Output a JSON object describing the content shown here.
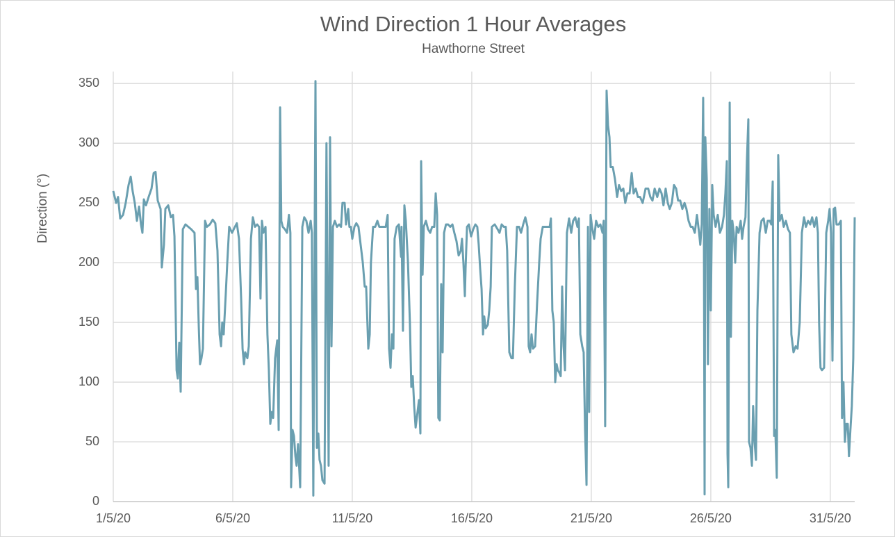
{
  "chart_data": {
    "type": "line",
    "title": "Wind Direction 1 Hour Averages",
    "subtitle": "Hawthorne Street",
    "y_label": "Direction (°)",
    "xlim": [
      1,
      32.02
    ],
    "ylim": [
      0,
      360
    ],
    "xticks": [
      {
        "value": 1,
        "label": "1/5/20"
      },
      {
        "value": 6,
        "label": "6/5/20"
      },
      {
        "value": 11,
        "label": "11/5/20"
      },
      {
        "value": 16,
        "label": "16/5/20"
      },
      {
        "value": 21,
        "label": "21/5/20"
      },
      {
        "value": 26,
        "label": "26/5/20"
      },
      {
        "value": 31,
        "label": "31/5/20"
      }
    ],
    "yticks": [
      0,
      50,
      100,
      150,
      200,
      250,
      300,
      350
    ],
    "grid": true,
    "x": [
      1.0,
      1.12,
      1.2,
      1.29,
      1.41,
      1.52,
      1.64,
      1.73,
      1.81,
      1.9,
      1.99,
      2.08,
      2.16,
      2.22,
      2.28,
      2.37,
      2.48,
      2.6,
      2.69,
      2.77,
      2.86,
      2.98,
      3.03,
      3.12,
      3.18,
      3.3,
      3.41,
      3.5,
      3.56,
      3.65,
      3.7,
      3.76,
      3.82,
      3.91,
      4.02,
      4.14,
      4.26,
      4.4,
      4.46,
      4.52,
      4.58,
      4.63,
      4.69,
      4.75,
      4.84,
      4.92,
      5.04,
      5.16,
      5.27,
      5.36,
      5.45,
      5.51,
      5.56,
      5.62,
      5.71,
      5.77,
      5.85,
      5.97,
      6.09,
      6.17,
      6.26,
      6.35,
      6.41,
      6.47,
      6.52,
      6.61,
      6.67,
      6.76,
      6.84,
      6.93,
      7.02,
      7.1,
      7.16,
      7.22,
      7.28,
      7.37,
      7.45,
      7.51,
      7.57,
      7.63,
      7.69,
      7.77,
      7.86,
      7.92,
      7.98,
      8.03,
      8.09,
      8.18,
      8.27,
      8.35,
      8.41,
      8.44,
      8.5,
      8.56,
      8.62,
      8.67,
      8.73,
      8.82,
      8.91,
      8.99,
      9.08,
      9.17,
      9.26,
      9.31,
      9.37,
      9.46,
      9.52,
      9.58,
      9.63,
      9.69,
      9.75,
      9.84,
      9.92,
      10.01,
      10.07,
      10.13,
      10.19,
      10.27,
      10.36,
      10.45,
      10.53,
      10.59,
      10.68,
      10.74,
      10.83,
      10.88,
      10.94,
      11.0,
      11.09,
      11.17,
      11.26,
      11.35,
      11.44,
      11.52,
      11.58,
      11.67,
      11.73,
      11.78,
      11.87,
      11.96,
      12.05,
      12.13,
      12.22,
      12.31,
      12.4,
      12.48,
      12.54,
      12.6,
      12.66,
      12.72,
      12.77,
      12.86,
      12.95,
      13.04,
      13.06,
      13.12,
      13.18,
      13.24,
      13.33,
      13.41,
      13.47,
      13.53,
      13.59,
      13.65,
      13.7,
      13.79,
      13.85,
      13.88,
      13.94,
      13.99,
      14.08,
      14.17,
      14.26,
      14.34,
      14.43,
      14.49,
      14.55,
      14.6,
      14.66,
      14.72,
      14.78,
      14.84,
      14.92,
      15.01,
      15.1,
      15.19,
      15.27,
      15.36,
      15.45,
      15.54,
      15.59,
      15.65,
      15.71,
      15.74,
      15.8,
      15.88,
      15.97,
      16.06,
      16.15,
      16.23,
      16.29,
      16.35,
      16.41,
      16.47,
      16.52,
      16.58,
      16.67,
      16.73,
      16.79,
      16.84,
      16.96,
      17.08,
      17.16,
      17.25,
      17.34,
      17.42,
      17.48,
      17.57,
      17.66,
      17.72,
      17.8,
      17.89,
      17.98,
      18.06,
      18.15,
      18.24,
      18.33,
      18.38,
      18.44,
      18.5,
      18.56,
      18.65,
      18.73,
      18.82,
      18.88,
      18.97,
      19.08,
      19.17,
      19.26,
      19.31,
      19.37,
      19.43,
      19.49,
      19.55,
      19.6,
      19.66,
      19.72,
      19.78,
      19.84,
      19.9,
      19.98,
      20.07,
      20.16,
      20.24,
      20.33,
      20.42,
      20.48,
      20.54,
      20.62,
      20.68,
      20.74,
      20.8,
      20.86,
      20.91,
      20.97,
      21.03,
      21.12,
      21.2,
      21.29,
      21.38,
      21.47,
      21.52,
      21.58,
      21.64,
      21.7,
      21.76,
      21.81,
      21.9,
      21.99,
      22.08,
      22.16,
      22.25,
      22.34,
      22.42,
      22.51,
      22.6,
      22.69,
      22.77,
      22.86,
      22.95,
      23.04,
      23.15,
      23.27,
      23.38,
      23.47,
      23.56,
      23.65,
      23.76,
      23.85,
      23.94,
      24.02,
      24.11,
      24.2,
      24.28,
      24.37,
      24.46,
      24.55,
      24.63,
      24.72,
      24.81,
      24.9,
      24.98,
      25.07,
      25.16,
      25.24,
      25.33,
      25.42,
      25.51,
      25.56,
      25.62,
      25.68,
      25.71,
      25.74,
      25.77,
      25.83,
      25.88,
      25.94,
      26.0,
      26.06,
      26.12,
      26.2,
      26.29,
      26.38,
      26.47,
      26.55,
      26.61,
      26.67,
      26.7,
      26.73,
      26.79,
      26.84,
      26.9,
      26.96,
      27.02,
      27.08,
      27.16,
      27.25,
      27.31,
      27.37,
      27.45,
      27.51,
      27.57,
      27.6,
      27.66,
      27.72,
      27.77,
      27.83,
      27.89,
      27.95,
      28.04,
      28.12,
      28.21,
      28.3,
      28.38,
      28.47,
      28.53,
      28.59,
      28.65,
      28.7,
      28.76,
      28.82,
      28.88,
      28.97,
      29.05,
      29.14,
      29.23,
      29.31,
      29.37,
      29.46,
      29.55,
      29.63,
      29.72,
      29.81,
      29.9,
      29.98,
      30.07,
      30.16,
      30.24,
      30.33,
      30.42,
      30.48,
      30.53,
      30.59,
      30.65,
      30.74,
      30.83,
      30.91,
      30.97,
      31.03,
      31.09,
      31.14,
      31.2,
      31.26,
      31.35,
      31.44,
      31.49,
      31.55,
      31.61,
      31.67,
      31.73,
      31.78,
      31.84,
      31.9,
      31.96,
      32.02
    ],
    "series": [
      {
        "name": "Direction",
        "color": "#6a9fb0",
        "values": [
          260,
          250,
          255,
          237,
          240,
          250,
          265,
          272,
          260,
          250,
          235,
          247,
          232,
          225,
          253,
          248,
          255,
          262,
          275,
          276,
          252,
          245,
          196,
          215,
          245,
          248,
          238,
          240,
          222,
          110,
          103,
          133,
          92,
          228,
          232,
          230,
          228,
          225,
          178,
          188,
          145,
          115,
          120,
          128,
          235,
          230,
          232,
          236,
          233,
          210,
          140,
          130,
          150,
          140,
          175,
          200,
          230,
          225,
          230,
          233,
          220,
          170,
          128,
          115,
          125,
          120,
          130,
          220,
          238,
          230,
          232,
          230,
          170,
          235,
          225,
          230,
          140,
          110,
          65,
          75,
          70,
          120,
          135,
          60,
          330,
          235,
          230,
          228,
          225,
          240,
          225,
          12,
          60,
          55,
          38,
          30,
          48,
          12,
          230,
          238,
          235,
          225,
          235,
          225,
          5,
          352,
          45,
          57,
          35,
          30,
          18,
          15,
          300,
          30,
          305,
          130,
          230,
          235,
          230,
          232,
          230,
          250,
          250,
          232,
          245,
          230,
          230,
          220,
          230,
          233,
          230,
          215,
          200,
          180,
          180,
          128,
          140,
          200,
          230,
          230,
          235,
          230,
          230,
          230,
          230,
          240,
          128,
          112,
          140,
          128,
          220,
          230,
          232,
          205,
          230,
          143,
          248,
          235,
          200,
          150,
          96,
          105,
          80,
          62,
          70,
          85,
          57,
          285,
          190,
          230,
          235,
          228,
          225,
          230,
          230,
          258,
          240,
          70,
          68,
          182,
          125,
          225,
          232,
          232,
          230,
          232,
          225,
          218,
          206,
          210,
          220,
          200,
          172,
          195,
          230,
          232,
          222,
          228,
          232,
          230,
          215,
          195,
          178,
          140,
          155,
          145,
          148,
          160,
          180,
          230,
          232,
          228,
          225,
          232,
          230,
          230,
          210,
          125,
          120,
          120,
          180,
          230,
          230,
          225,
          232,
          238,
          230,
          130,
          125,
          140,
          128,
          130,
          165,
          200,
          220,
          230,
          230,
          230,
          230,
          237,
          160,
          150,
          100,
          115,
          110,
          108,
          105,
          180,
          130,
          110,
          225,
          237,
          225,
          235,
          238,
          230,
          237,
          140,
          130,
          125,
          60,
          14,
          230,
          75,
          240,
          230,
          220,
          235,
          230,
          232,
          225,
          235,
          63,
          344,
          315,
          305,
          280,
          280,
          270,
          255,
          265,
          260,
          262,
          250,
          258,
          258,
          275,
          258,
          262,
          255,
          255,
          250,
          262,
          262,
          255,
          252,
          262,
          255,
          262,
          258,
          248,
          262,
          250,
          245,
          250,
          265,
          262,
          252,
          252,
          245,
          250,
          245,
          235,
          230,
          230,
          225,
          240,
          225,
          215,
          232,
          338,
          240,
          6,
          305,
          270,
          115,
          245,
          160,
          265,
          240,
          230,
          240,
          225,
          230,
          240,
          258,
          285,
          40,
          12,
          334,
          138,
          235,
          225,
          200,
          230,
          225,
          235,
          220,
          230,
          238,
          285,
          320,
          50,
          45,
          30,
          80,
          50,
          35,
          160,
          225,
          235,
          237,
          225,
          235,
          235,
          232,
          268,
          55,
          60,
          20,
          290,
          235,
          240,
          230,
          235,
          228,
          225,
          140,
          125,
          130,
          128,
          150,
          225,
          238,
          230,
          235,
          232,
          238,
          230,
          238,
          225,
          150,
          112,
          110,
          112,
          225,
          235,
          245,
          225,
          118,
          245,
          246,
          232,
          232,
          235,
          70,
          100,
          50,
          65,
          65,
          38,
          60,
          80,
          120,
          238
        ]
      }
    ]
  }
}
